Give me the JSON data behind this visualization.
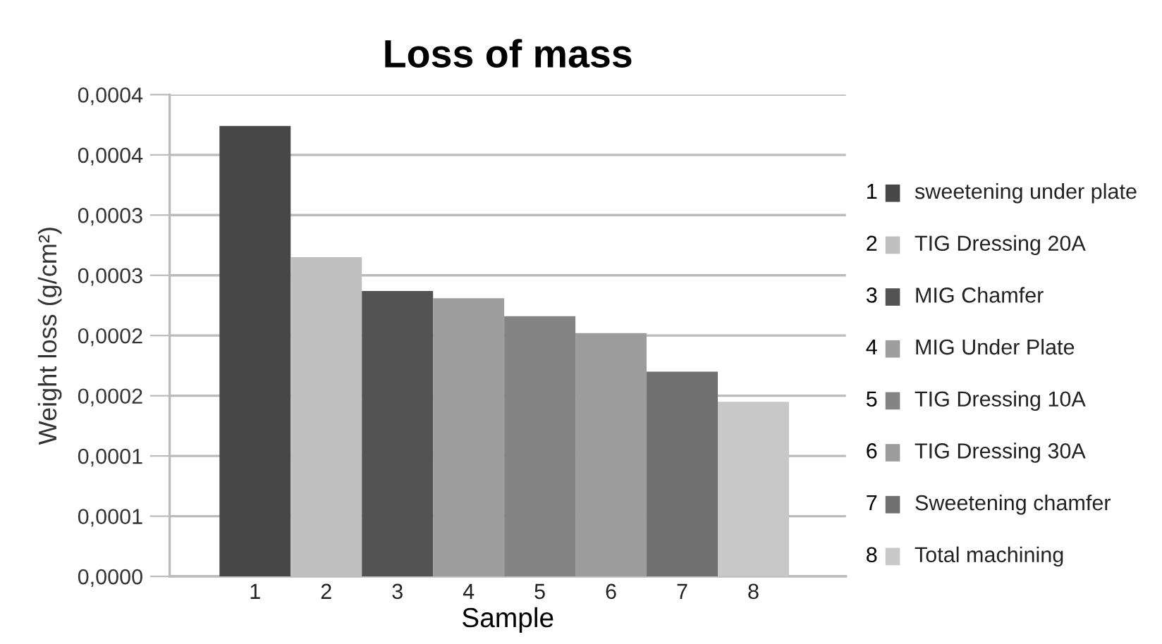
{
  "chart_data": {
    "type": "bar",
    "title": "Loss of mass",
    "xlabel": "Sample",
    "ylabel": "Weight loss (g/cm²)",
    "categories": [
      "1",
      "2",
      "3",
      "4",
      "5",
      "6",
      "7",
      "8"
    ],
    "series": [
      {
        "name": "sweetening under plate",
        "color": "#474747",
        "values": [
          0.000374,
          null,
          null,
          null,
          null,
          null,
          null,
          null
        ]
      },
      {
        "name": "TIG Dressing 20A",
        "color": "#c0c0c0",
        "values": [
          null,
          0.000265,
          null,
          null,
          null,
          null,
          null,
          null
        ]
      },
      {
        "name": "MIG Chamfer",
        "color": "#535353",
        "values": [
          null,
          null,
          0.000237,
          null,
          null,
          null,
          null,
          null
        ]
      },
      {
        "name": "MIG Under Plate",
        "color": "#9e9e9e",
        "values": [
          null,
          null,
          null,
          0.000231,
          null,
          null,
          null,
          null
        ]
      },
      {
        "name": "TIG Dressing 10A",
        "color": "#848484",
        "values": [
          null,
          null,
          null,
          null,
          0.000216,
          null,
          null,
          null
        ]
      },
      {
        "name": "TIG Dressing 30A",
        "color": "#9c9c9c",
        "values": [
          null,
          null,
          null,
          null,
          null,
          0.000202,
          null,
          null
        ]
      },
      {
        "name": "Sweetening chamfer",
        "color": "#6f6f6f",
        "values": [
          null,
          null,
          null,
          null,
          null,
          null,
          0.00017,
          null
        ]
      },
      {
        "name": "Total machining",
        "color": "#c8c8c8",
        "values": [
          null,
          null,
          null,
          null,
          null,
          null,
          null,
          0.000145
        ]
      }
    ],
    "ylim": [
      0,
      0.0004
    ],
    "yticks": [
      {
        "value": 0,
        "label": "0,0000"
      },
      {
        "value": 5e-05,
        "label": "0,0001"
      },
      {
        "value": 0.0001,
        "label": "0,0001"
      },
      {
        "value": 0.00015,
        "label": "0,0002"
      },
      {
        "value": 0.0002,
        "label": "0,0002"
      },
      {
        "value": 0.00025,
        "label": "0,0003"
      },
      {
        "value": 0.0003,
        "label": "0,0003"
      },
      {
        "value": 0.00035,
        "label": "0,0004"
      },
      {
        "value": 0.0004,
        "label": "0,0004"
      }
    ],
    "grid": "y",
    "legend": "right"
  }
}
